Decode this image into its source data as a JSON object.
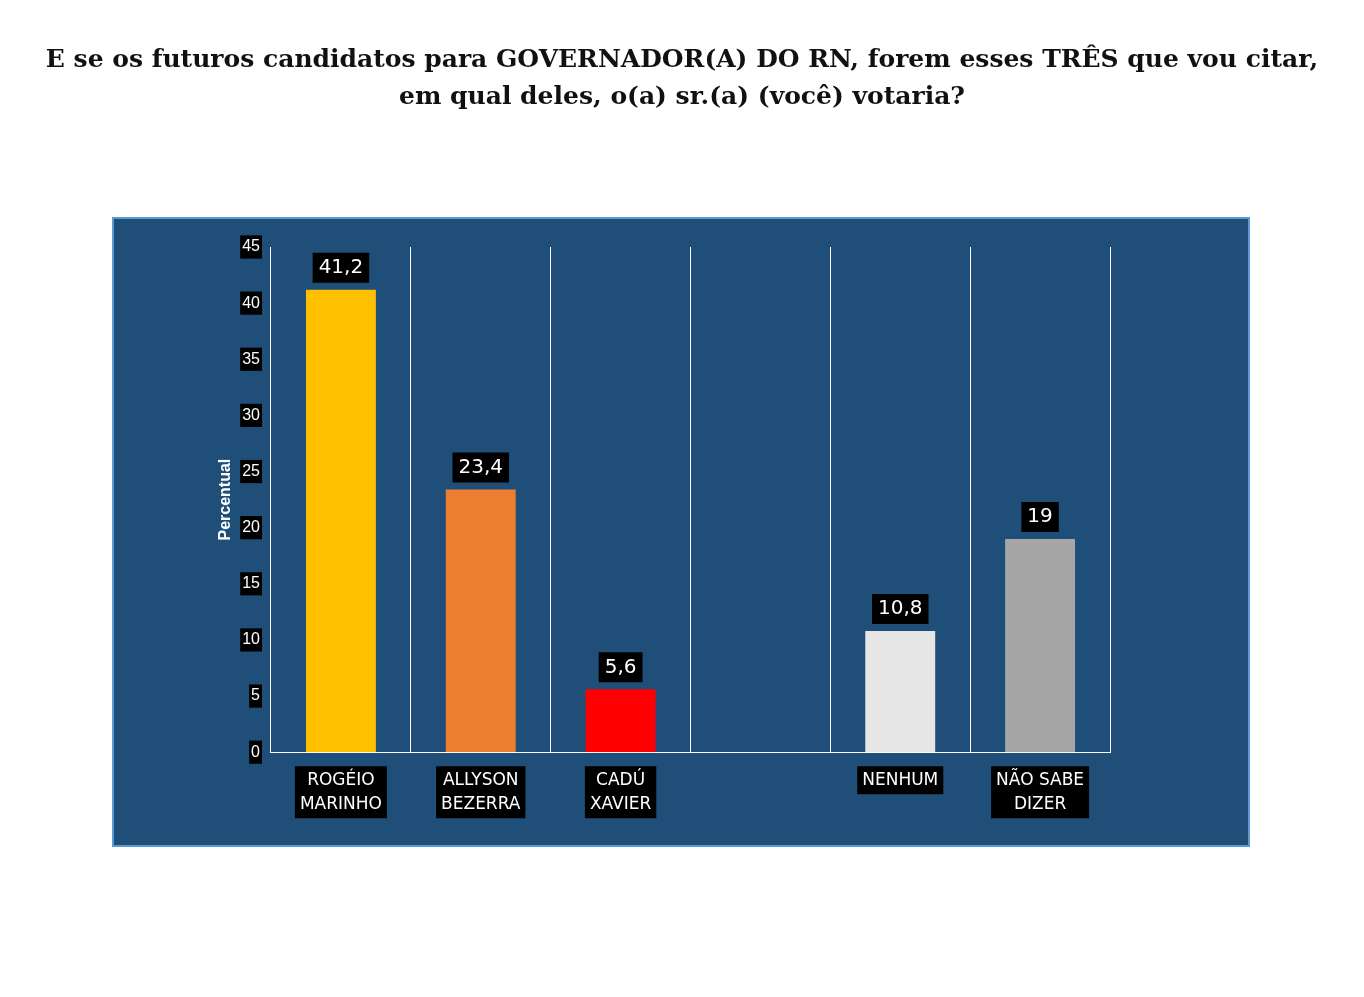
{
  "chart_data": {
    "type": "bar",
    "title": "E se os futuros candidatos para GOVERNADOR(A) DO RN, forem esses TRÊS que vou citar, em qual deles, o(a) sr.(a) (você) votaria?",
    "ylabel": "Percentual",
    "categories": [
      "ROGÉIO MARINHO",
      "ALLYSON BEZERRA",
      "CADÚ XAVIER",
      null,
      "NENHUM",
      "NÃO SABE DIZER"
    ],
    "values": [
      41.2,
      23.4,
      5.6,
      null,
      10.8,
      19
    ],
    "colors": [
      "#ffc000",
      "#ed7d31",
      "#ff0000",
      "#a6a6a6",
      "#e6e6e6",
      "#a6a6a6"
    ],
    "value_labels": [
      "41,2",
      "23,4",
      "5,6",
      null,
      "10,8",
      "19"
    ],
    "ylim": [
      0,
      45
    ],
    "yticks": [
      0,
      5,
      10,
      15,
      20,
      25,
      30,
      35,
      40,
      45
    ],
    "grid": "x",
    "legend": false
  }
}
